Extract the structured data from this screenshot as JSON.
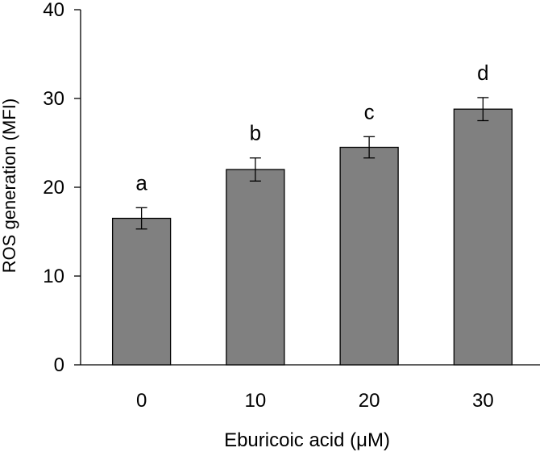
{
  "chart_data": {
    "type": "bar",
    "title": "",
    "xlabel": "Eburicoic acid (μM)",
    "ylabel": "ROS generation (MFI)",
    "categories": [
      "0",
      "10",
      "20",
      "30"
    ],
    "values": [
      16.5,
      22.0,
      24.5,
      28.8
    ],
    "errors": [
      1.2,
      1.3,
      1.2,
      1.3
    ],
    "significance_letters": [
      "a",
      "b",
      "c",
      "d"
    ],
    "ylim": [
      0,
      40
    ],
    "yticks": [
      "0",
      "10",
      "20",
      "30",
      "40"
    ],
    "grid": false,
    "bar_color": "#808080",
    "bar_outline_color": "#000000"
  }
}
